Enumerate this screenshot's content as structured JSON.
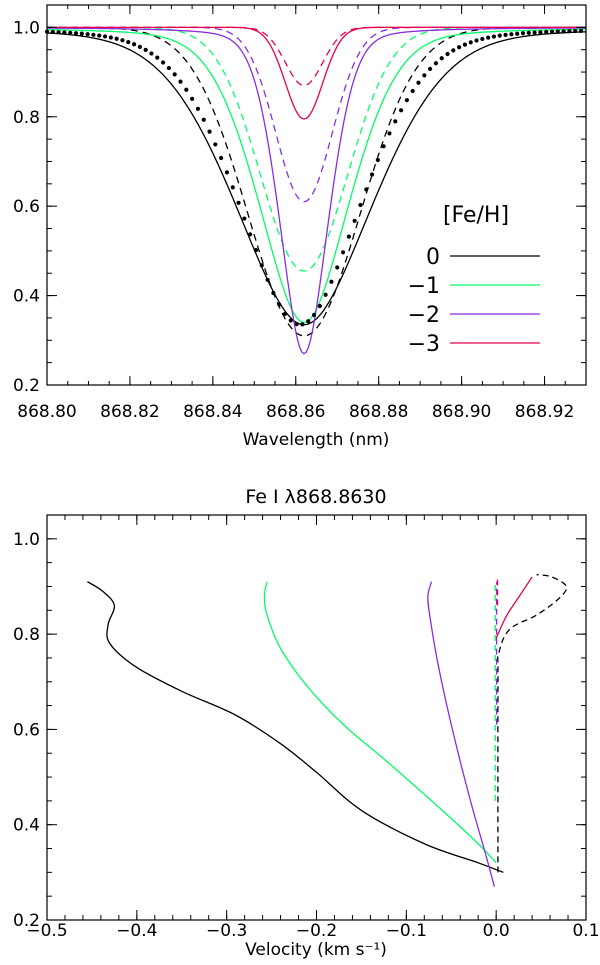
{
  "chart_data": [
    {
      "type": "line",
      "title": "",
      "xlabel": "Wavelength (nm)",
      "ylabel": "",
      "xlim": [
        868.8,
        868.93
      ],
      "ylim": [
        0.2,
        1.05
      ],
      "x_ticks": [
        "868.80",
        "868.82",
        "868.84",
        "868.86",
        "868.88",
        "868.90",
        "868.92"
      ],
      "y_ticks": [
        "0.2",
        "0.4",
        "0.6",
        "0.8",
        "1.0"
      ],
      "legend_title": "[Fe/H]",
      "legend_placement": "right",
      "grid": false,
      "series": [
        {
          "name": "0",
          "color": "#000000",
          "style": "solid",
          "center": 868.862,
          "depth": 0.665,
          "width": 0.0175,
          "shape": "mixed"
        },
        {
          "style": "dashed",
          "color": "#000000",
          "center": 868.862,
          "depth": 0.69,
          "width": 0.0135,
          "shape": "gauss"
        },
        {
          "name": "-1",
          "color": "#00ff66",
          "style": "solid",
          "center": 868.862,
          "depth": 0.66,
          "width": 0.0115,
          "shape": "mixed"
        },
        {
          "style": "dashed",
          "color": "#00ff66",
          "center": 868.862,
          "depth": 0.545,
          "width": 0.0105,
          "shape": "gauss"
        },
        {
          "name": "-2",
          "color": "#8a2be2",
          "style": "solid",
          "center": 868.862,
          "depth": 0.73,
          "width": 0.0062,
          "shape": "mixed"
        },
        {
          "style": "dashed",
          "color": "#8a2be2",
          "center": 868.862,
          "depth": 0.39,
          "width": 0.0068,
          "shape": "gauss"
        },
        {
          "name": "-3",
          "color": "#e6004c",
          "style": "solid",
          "center": 868.862,
          "depth": 0.205,
          "width": 0.0045,
          "shape": "gauss"
        },
        {
          "style": "dashed",
          "color": "#e6004c",
          "center": 868.862,
          "depth": 0.13,
          "width": 0.0045,
          "shape": "gauss"
        }
      ],
      "observed_points": {
        "style": "dots",
        "color": "#000000",
        "center": 868.861,
        "depth": 0.665,
        "width": 0.0155,
        "x_start": 868.8,
        "x_end": 868.93,
        "x_step": 0.0014
      }
    },
    {
      "type": "line",
      "title": "Fe I λ868.8630",
      "xlabel": "Velocity (km s⁻¹)",
      "ylabel": "",
      "xlim": [
        -0.5,
        0.1
      ],
      "ylim": [
        0.2,
        1.05
      ],
      "x_ticks": [
        "−0.5",
        "−0.4",
        "−0.3",
        "−0.2",
        "−0.1",
        "0.0",
        "0.1"
      ],
      "y_ticks": [
        "0.2",
        "0.4",
        "0.6",
        "0.8",
        "1.0"
      ],
      "grid": false,
      "series": [
        {
          "color": "#000000",
          "style": "solid",
          "points": [
            [
              0.008,
              0.3
            ],
            [
              -0.02,
              0.32
            ],
            [
              -0.08,
              0.36
            ],
            [
              -0.15,
              0.43
            ],
            [
              -0.2,
              0.51
            ],
            [
              -0.24,
              0.57
            ],
            [
              -0.29,
              0.63
            ],
            [
              -0.35,
              0.68
            ],
            [
              -0.4,
              0.73
            ],
            [
              -0.43,
              0.78
            ],
            [
              -0.432,
              0.82
            ],
            [
              -0.425,
              0.86
            ],
            [
              -0.438,
              0.89
            ],
            [
              -0.455,
              0.91
            ]
          ]
        },
        {
          "color": "#00ff66",
          "style": "solid",
          "points": [
            [
              0.0,
              0.32
            ],
            [
              -0.02,
              0.36
            ],
            [
              -0.06,
              0.43
            ],
            [
              -0.12,
              0.53
            ],
            [
              -0.17,
              0.61
            ],
            [
              -0.21,
              0.69
            ],
            [
              -0.24,
              0.77
            ],
            [
              -0.255,
              0.84
            ],
            [
              -0.258,
              0.88
            ],
            [
              -0.255,
              0.91
            ]
          ]
        },
        {
          "color": "#8a2be2",
          "style": "solid",
          "points": [
            [
              -0.002,
              0.27
            ],
            [
              -0.012,
              0.34
            ],
            [
              -0.03,
              0.46
            ],
            [
              -0.05,
              0.61
            ],
            [
              -0.065,
              0.74
            ],
            [
              -0.074,
              0.84
            ],
            [
              -0.076,
              0.88
            ],
            [
              -0.072,
              0.91
            ]
          ]
        },
        {
          "color": "#e6004c",
          "style": "solid",
          "points": [
            [
              0.0,
              0.79
            ],
            [
              0.002,
              0.8
            ],
            [
              0.012,
              0.84
            ],
            [
              0.026,
              0.88
            ],
            [
              0.04,
              0.92
            ]
          ]
        },
        {
          "color": "#000000",
          "style": "dashed",
          "points": [
            [
              0.002,
              0.3
            ],
            [
              0.002,
              0.7
            ],
            [
              0.003,
              0.76
            ],
            [
              0.015,
              0.81
            ],
            [
              0.045,
              0.84
            ],
            [
              0.07,
              0.875
            ],
            [
              0.078,
              0.9
            ],
            [
              0.062,
              0.92
            ],
            [
              0.045,
              0.925
            ]
          ]
        },
        {
          "color": "#00ff66",
          "style": "dashed",
          "points": [
            [
              -0.001,
              0.45
            ],
            [
              -0.001,
              0.91
            ]
          ]
        },
        {
          "color": "#8a2be2",
          "style": "dashed",
          "points": [
            [
              0.0005,
              0.61
            ],
            [
              0.0005,
              0.91
            ]
          ]
        },
        {
          "color": "#e6004c",
          "style": "dashed",
          "points": [
            [
              0.0015,
              0.86
            ],
            [
              0.0015,
              0.92
            ]
          ]
        }
      ]
    }
  ]
}
